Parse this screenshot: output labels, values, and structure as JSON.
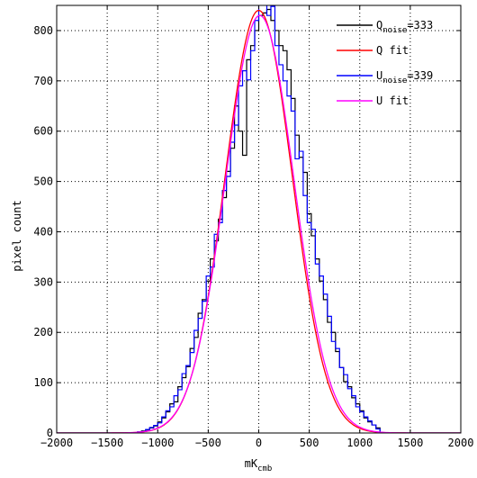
{
  "chart_data": {
    "type": "histogram",
    "xlabel": {
      "main": "mK",
      "sub": "cmb"
    },
    "ylabel": "pixel count",
    "xlim": [
      -2000,
      2000
    ],
    "ylim": [
      0,
      850
    ],
    "x_ticks": [
      -2000,
      -1500,
      -1000,
      -500,
      0,
      500,
      1000,
      1500,
      2000
    ],
    "y_ticks": [
      0,
      100,
      200,
      300,
      400,
      500,
      600,
      700,
      800
    ],
    "grid": true,
    "legend_position": "top-right",
    "legend": [
      {
        "series": "Q_noise",
        "main": "Q",
        "sub": "noise",
        "suffix": "=333",
        "color": "#000000"
      },
      {
        "series": "Q_fit",
        "main": "Q fit",
        "sub": "",
        "suffix": "",
        "color": "#ff0000"
      },
      {
        "series": "U_noise",
        "main": "U",
        "sub": "noise",
        "suffix": "=339",
        "color": "#0000ff"
      },
      {
        "series": "U_fit",
        "main": "U fit",
        "sub": "",
        "suffix": "",
        "color": "#ff00ff"
      }
    ],
    "series": [
      {
        "name": "Q_noise",
        "kind": "step",
        "color": "#000000",
        "bin_width": 40,
        "bin_start": -1200,
        "values": [
          2,
          4,
          6,
          10,
          14,
          22,
          30,
          42,
          58,
          62,
          92,
          110,
          132,
          168,
          190,
          238,
          265,
          302,
          346,
          382,
          425,
          468,
          520,
          566,
          650,
          600,
          552,
          742,
          770,
          800,
          830,
          835,
          842,
          820,
          800,
          770,
          760,
          722,
          665,
          592,
          548,
          518,
          436,
          392,
          346,
          302,
          265,
          220,
          200,
          162,
          130,
          102,
          92,
          70,
          58,
          44,
          30,
          22,
          16,
          10
        ]
      },
      {
        "name": "U_noise",
        "kind": "step",
        "color": "#0000ff",
        "bin_width": 40,
        "bin_start": -1200,
        "values": [
          2,
          3,
          7,
          11,
          15,
          20,
          32,
          44,
          52,
          74,
          86,
          118,
          134,
          160,
          204,
          228,
          262,
          312,
          330,
          395,
          418,
          482,
          510,
          578,
          612,
          690,
          720,
          702,
          760,
          820,
          852,
          856,
          830,
          848,
          770,
          732,
          700,
          670,
          640,
          545,
          560,
          472,
          418,
          405,
          336,
          312,
          276,
          232,
          182,
          168,
          130,
          116,
          88,
          74,
          52,
          42,
          32,
          24,
          16,
          8
        ]
      },
      {
        "name": "Q_fit",
        "kind": "gaussian",
        "color": "#ff0000",
        "amplitude": 840,
        "mean": 0,
        "sigma": 333
      },
      {
        "name": "U_fit",
        "kind": "gaussian",
        "color": "#ff00ff",
        "amplitude": 830,
        "mean": 10,
        "sigma": 339
      }
    ]
  }
}
